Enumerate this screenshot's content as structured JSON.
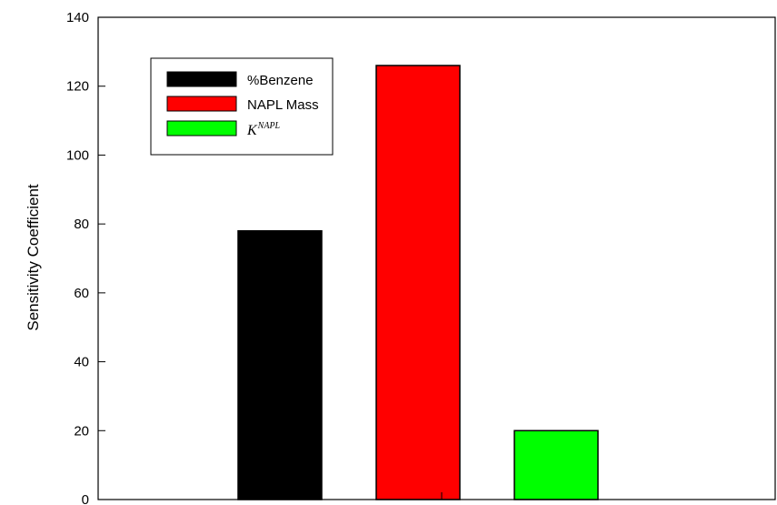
{
  "chart_data": {
    "type": "bar",
    "title": "",
    "xlabel": "",
    "ylabel": "Sensitivity Coefficient",
    "ylim": [
      0,
      140
    ],
    "yticks": [
      0,
      20,
      40,
      60,
      80,
      100,
      120,
      140
    ],
    "grid": false,
    "legend_position": "top-left",
    "series": [
      {
        "name": "%Benzene",
        "value": 78,
        "color": "#000000"
      },
      {
        "name": "NAPL Mass",
        "value": 126,
        "color": "#ff0000"
      },
      {
        "name": "K",
        "name_superscript": "NAPL",
        "value": 20,
        "color": "#00ff00"
      }
    ]
  }
}
